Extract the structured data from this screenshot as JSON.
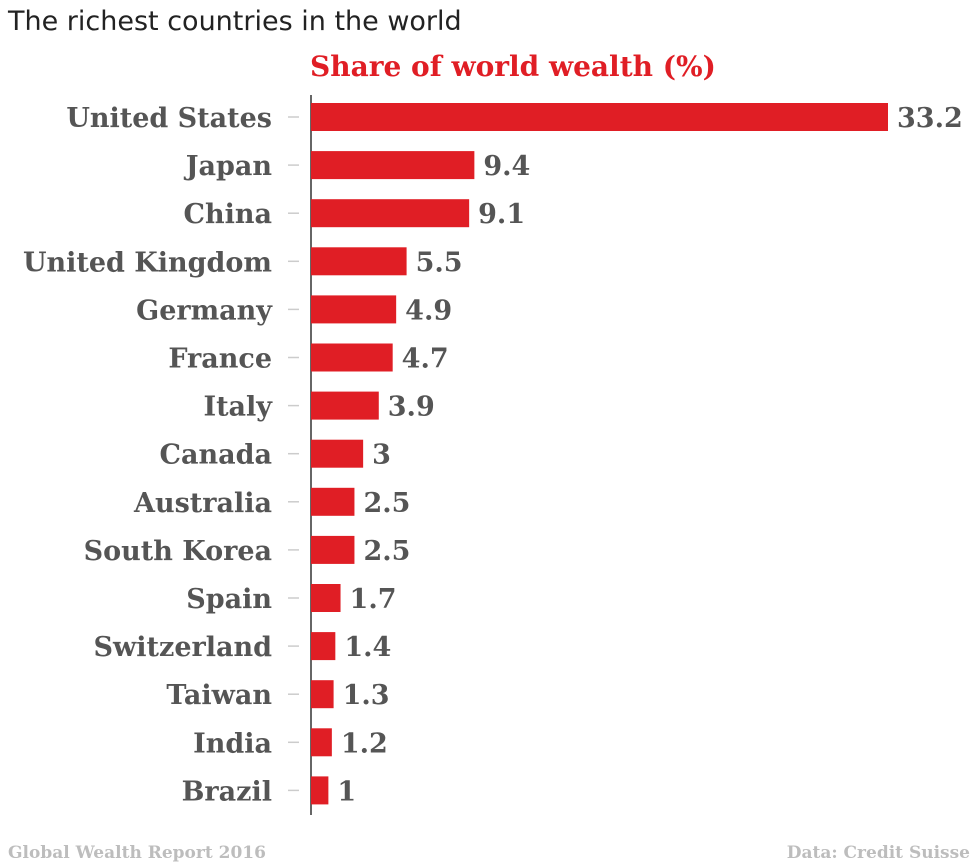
{
  "title": "The richest countries in the world",
  "chart_data": {
    "type": "bar",
    "orientation": "horizontal",
    "title": "Share of world wealth (%)",
    "categories": [
      "United States",
      "Japan",
      "China",
      "United Kingdom",
      "Germany",
      "France",
      "Italy",
      "Canada",
      "Australia",
      "South Korea",
      "Spain",
      "Switzerland",
      "Taiwan",
      "India",
      "Brazil"
    ],
    "values": [
      33.2,
      9.4,
      9.1,
      5.5,
      4.9,
      4.7,
      3.9,
      3,
      2.5,
      2.5,
      1.7,
      1.4,
      1.3,
      1.2,
      1
    ],
    "value_labels": [
      "33.2",
      "9.4",
      "9.1",
      "5.5",
      "4.9",
      "4.7",
      "3.9",
      "3",
      "2.5",
      "2.5",
      "1.7",
      "1.4",
      "1.3",
      "1.2",
      "1"
    ],
    "xlim": [
      0,
      33.2
    ],
    "grid": false,
    "bar_color": "#e01e25",
    "label_color": "#555555"
  },
  "footer": {
    "source_left": "Global Wealth Report 2016",
    "source_right": "Data: Credit Suisse"
  },
  "colors": {
    "accent": "#e01e25",
    "footer_text": "#bdbdbd"
  }
}
